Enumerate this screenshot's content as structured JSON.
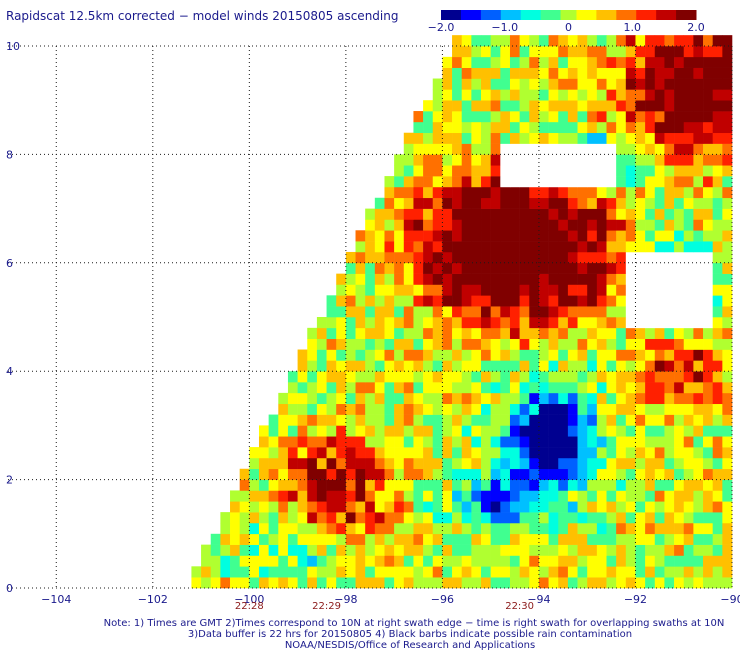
{
  "chart_data": {
    "type": "heatmap",
    "title": "Rapidscat 12.5km corrected − model winds 20150805 ascending",
    "colorbar": {
      "min": -2.0,
      "max": 2.0,
      "tick_values": [
        -2.0,
        -1.0,
        0,
        1.0,
        2.0
      ],
      "tick_labels": [
        "−2.0",
        "−1.0",
        "0",
        "1.0",
        "2.0"
      ],
      "colors": [
        "#000090",
        "#0000ff",
        "#0060ff",
        "#00c0ff",
        "#00ffe0",
        "#40ff90",
        "#b0ff30",
        "#ffff00",
        "#ffc000",
        "#ff7000",
        "#ff2000",
        "#c00000",
        "#800000"
      ]
    },
    "x_axis": {
      "range": [
        -105,
        -90
      ],
      "ticks": [
        -104,
        -102,
        -100,
        -98,
        -96,
        -94,
        -92,
        -90
      ],
      "tick_labels": [
        "−104",
        "−102",
        "−100",
        "−98",
        "−96",
        "−94",
        "−92",
        "−90"
      ]
    },
    "y_axis": {
      "range": [
        0,
        10
      ],
      "ticks": [
        0,
        2,
        4,
        6,
        8,
        10
      ],
      "tick_labels": [
        "0",
        "2",
        "4",
        "6",
        "8",
        "10"
      ]
    },
    "grid": true,
    "swath_times": [
      {
        "label": "22:28",
        "lon": -100
      },
      {
        "label": "22:29",
        "lon": -98.4
      },
      {
        "label": "22:30",
        "lon": -94.4
      }
    ],
    "regions": [
      {
        "name": "saturated positive difference",
        "lon": [
          -97,
          -92
        ],
        "lat": [
          4.5,
          8.5
        ],
        "value": 2.0
      },
      {
        "name": "strong negative difference",
        "lon": [
          -94.8,
          -93
        ],
        "lat": [
          1.5,
          3.5
        ],
        "value": -1.8
      },
      {
        "name": "no data",
        "lon": [
          -92,
          -90.2
        ],
        "lat": [
          4.8,
          6.3
        ],
        "value": null
      }
    ]
  },
  "notes": {
    "line1": "Note: 1) Times are GMT 2)Times correspond to 10N at right swath edge − time is right swath for overlapping swaths at 10N",
    "line2": "3)Data buffer is 22 hrs for 20150805 4) Black barbs indicate possible rain contamination",
    "line3": "NOAA/NESDIS/Office of Research and Applications"
  }
}
